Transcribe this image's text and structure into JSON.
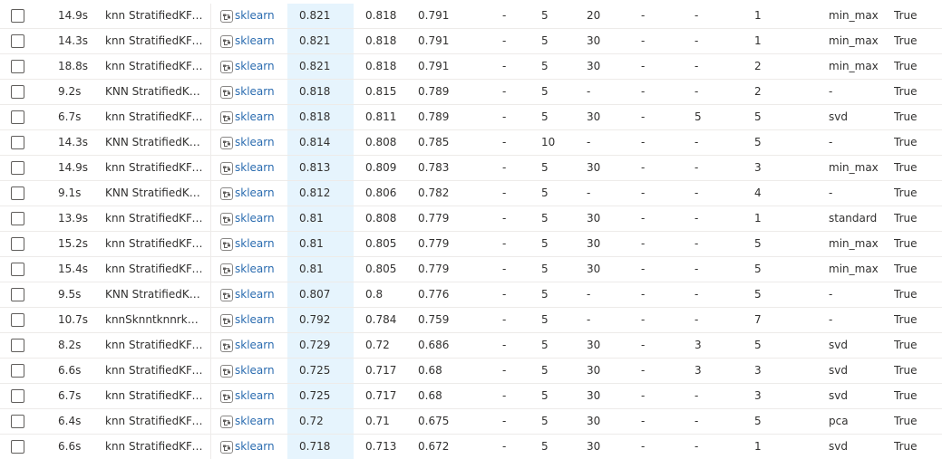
{
  "framework_label": "sklearn",
  "framework_icon": "sklearn-framework-icon",
  "rows": [
    {
      "duration": "14.9s",
      "name": "knn StratifiedKFold",
      "metric1": "0.821",
      "metric2": "0.818",
      "metric3": "0.791",
      "dash1": "-",
      "n1": "5",
      "n2": "20",
      "dash2": "-",
      "n3": "-",
      "n4": "1",
      "preproc": "min_max",
      "flag": "True"
    },
    {
      "duration": "14.3s",
      "name": "knn StratifiedKFold",
      "metric1": "0.821",
      "metric2": "0.818",
      "metric3": "0.791",
      "dash1": "-",
      "n1": "5",
      "n2": "30",
      "dash2": "-",
      "n3": "-",
      "n4": "1",
      "preproc": "min_max",
      "flag": "True"
    },
    {
      "duration": "18.8s",
      "name": "knn StratifiedKFold",
      "metric1": "0.821",
      "metric2": "0.818",
      "metric3": "0.791",
      "dash1": "-",
      "n1": "5",
      "n2": "30",
      "dash2": "-",
      "n3": "-",
      "n4": "2",
      "preproc": "min_max",
      "flag": "True"
    },
    {
      "duration": "9.2s",
      "name": "KNN StratifiedKF...",
      "metric1": "0.818",
      "metric2": "0.815",
      "metric3": "0.789",
      "dash1": "-",
      "n1": "5",
      "n2": "-",
      "dash2": "-",
      "n3": "-",
      "n4": "2",
      "preproc": "-",
      "flag": "True"
    },
    {
      "duration": "6.7s",
      "name": "knn StratifiedKFold",
      "metric1": "0.818",
      "metric2": "0.811",
      "metric3": "0.789",
      "dash1": "-",
      "n1": "5",
      "n2": "30",
      "dash2": "-",
      "n3": "5",
      "n4": "5",
      "preproc": "svd",
      "flag": "True"
    },
    {
      "duration": "14.3s",
      "name": "KNN StratifiedKF...",
      "metric1": "0.814",
      "metric2": "0.808",
      "metric3": "0.785",
      "dash1": "-",
      "n1": "10",
      "n2": "-",
      "dash2": "-",
      "n3": "-",
      "n4": "5",
      "preproc": "-",
      "flag": "True"
    },
    {
      "duration": "14.9s",
      "name": "knn StratifiedKFold",
      "metric1": "0.813",
      "metric2": "0.809",
      "metric3": "0.783",
      "dash1": "-",
      "n1": "5",
      "n2": "30",
      "dash2": "-",
      "n3": "-",
      "n4": "3",
      "preproc": "min_max",
      "flag": "True"
    },
    {
      "duration": "9.1s",
      "name": "KNN StratifiedKF...",
      "metric1": "0.812",
      "metric2": "0.806",
      "metric3": "0.782",
      "dash1": "-",
      "n1": "5",
      "n2": "-",
      "dash2": "-",
      "n3": "-",
      "n4": "4",
      "preproc": "-",
      "flag": "True"
    },
    {
      "duration": "13.9s",
      "name": "knn StratifiedKFold",
      "metric1": "0.81",
      "metric2": "0.808",
      "metric3": "0.779",
      "dash1": "-",
      "n1": "5",
      "n2": "30",
      "dash2": "-",
      "n3": "-",
      "n4": "1",
      "preproc": "standard",
      "flag": "True"
    },
    {
      "duration": "15.2s",
      "name": "knn StratifiedKFold",
      "metric1": "0.81",
      "metric2": "0.805",
      "metric3": "0.779",
      "dash1": "-",
      "n1": "5",
      "n2": "30",
      "dash2": "-",
      "n3": "-",
      "n4": "5",
      "preproc": "min_max",
      "flag": "True"
    },
    {
      "duration": "15.4s",
      "name": "knn StratifiedKFold",
      "metric1": "0.81",
      "metric2": "0.805",
      "metric3": "0.779",
      "dash1": "-",
      "n1": "5",
      "n2": "30",
      "dash2": "-",
      "n3": "-",
      "n4": "5",
      "preproc": "min_max",
      "flag": "True"
    },
    {
      "duration": "9.5s",
      "name": "KNN StratifiedKF...",
      "metric1": "0.807",
      "metric2": "0.8",
      "metric3": "0.776",
      "dash1": "-",
      "n1": "5",
      "n2": "-",
      "dash2": "-",
      "n3": "-",
      "n4": "5",
      "preproc": "-",
      "flag": "True"
    },
    {
      "duration": "10.7s",
      "name": "knnSknntknnrknn...",
      "metric1": "0.792",
      "metric2": "0.784",
      "metric3": "0.759",
      "dash1": "-",
      "n1": "5",
      "n2": "-",
      "dash2": "-",
      "n3": "-",
      "n4": "7",
      "preproc": "-",
      "flag": "True"
    },
    {
      "duration": "8.2s",
      "name": "knn StratifiedKFold",
      "metric1": "0.729",
      "metric2": "0.72",
      "metric3": "0.686",
      "dash1": "-",
      "n1": "5",
      "n2": "30",
      "dash2": "-",
      "n3": "3",
      "n4": "5",
      "preproc": "svd",
      "flag": "True"
    },
    {
      "duration": "6.6s",
      "name": "knn StratifiedKFold",
      "metric1": "0.725",
      "metric2": "0.717",
      "metric3": "0.68",
      "dash1": "-",
      "n1": "5",
      "n2": "30",
      "dash2": "-",
      "n3": "3",
      "n4": "3",
      "preproc": "svd",
      "flag": "True"
    },
    {
      "duration": "6.7s",
      "name": "knn StratifiedKFold",
      "metric1": "0.725",
      "metric2": "0.717",
      "metric3": "0.68",
      "dash1": "-",
      "n1": "5",
      "n2": "30",
      "dash2": "-",
      "n3": "-",
      "n4": "3",
      "preproc": "svd",
      "flag": "True"
    },
    {
      "duration": "6.4s",
      "name": "knn StratifiedKFold",
      "metric1": "0.72",
      "metric2": "0.71",
      "metric3": "0.675",
      "dash1": "-",
      "n1": "5",
      "n2": "30",
      "dash2": "-",
      "n3": "-",
      "n4": "5",
      "preproc": "pca",
      "flag": "True"
    },
    {
      "duration": "6.6s",
      "name": "knn StratifiedKFold",
      "metric1": "0.718",
      "metric2": "0.713",
      "metric3": "0.672",
      "dash1": "-",
      "n1": "5",
      "n2": "30",
      "dash2": "-",
      "n3": "-",
      "n4": "1",
      "preproc": "svd",
      "flag": "True"
    }
  ]
}
